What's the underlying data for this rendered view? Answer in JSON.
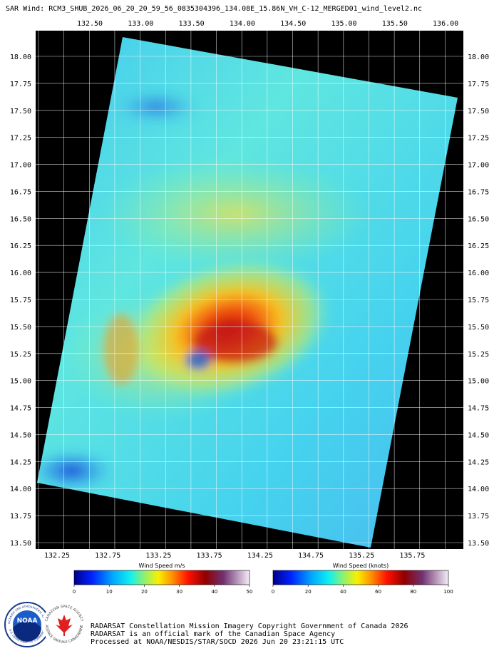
{
  "title": "SAR Wind: RCM3_SHUB_2026_06_20_20_59_56_0835304396_134.08E_15.86N_VH_C-12_MERGED01_wind_level2.nc",
  "top_longitudes": [
    "132.50",
    "133.00",
    "133.50",
    "134.00",
    "134.50",
    "135.00",
    "135.50",
    "136.00"
  ],
  "bottom_longitudes": [
    "132.25",
    "132.75",
    "133.25",
    "133.75",
    "134.25",
    "134.75",
    "135.25",
    "135.75"
  ],
  "latitudes": [
    "18.00",
    "17.75",
    "17.50",
    "17.25",
    "17.00",
    "16.75",
    "16.50",
    "16.25",
    "16.00",
    "15.75",
    "15.50",
    "15.25",
    "15.00",
    "14.75",
    "14.50",
    "14.25",
    "14.00",
    "13.75",
    "13.50"
  ],
  "colorbars": [
    {
      "label": "Wind Speed m/s",
      "ticks": [
        "0",
        "10",
        "20",
        "30",
        "40",
        "50"
      ]
    },
    {
      "label": "Wind Speed (knots)",
      "ticks": [
        "0",
        "20",
        "40",
        "60",
        "80",
        "100"
      ]
    }
  ],
  "credits": [
    "RADARSAT Constellation Mission Imagery Copyright Government of Canada 2026",
    "RADARSAT is an official mark of the Canadian Space Agency",
    "Processed at NOAA/NESDIS/STAR/SOCD 2026 Jun 20 23:21:15 UTC"
  ],
  "logos": {
    "noaa": "NOAA",
    "noaa_ring_top": "NATIONAL OCEANIC AND ATMOSPHERIC ADMINISTRATION",
    "noaa_ring_bottom": "U.S. DEPARTMENT OF COMMERCE",
    "csa_en": "CANADIAN SPACE AGENCY",
    "csa_fr": "AGENCE SPATIALE CANADIENNE"
  }
}
